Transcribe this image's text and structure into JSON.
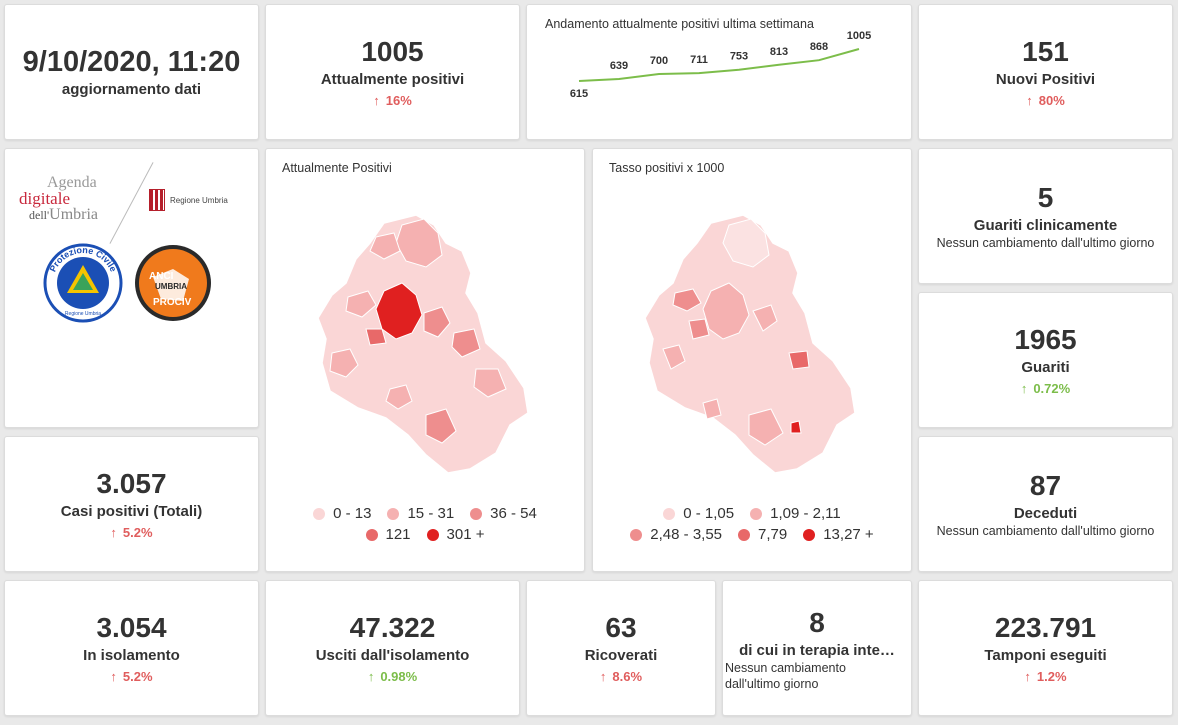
{
  "update": {
    "datetime": "9/10/2020, 11:20",
    "label": "aggiornamento dati"
  },
  "attualmente_positivi": {
    "value": "1005",
    "label": "Attualmente positivi",
    "delta": "16%"
  },
  "trend": {
    "title": "Andamento attualmente positivi ultima settimana",
    "values": [
      615,
      639,
      700,
      711,
      753,
      813,
      868,
      1005
    ],
    "color": "#7cbd4a"
  },
  "nuovi_positivi": {
    "value": "151",
    "label": "Nuovi Positivi",
    "delta": "80%"
  },
  "logos": {
    "agenda_line1": "Agenda",
    "agenda_line2": "digitale",
    "agenda_line3a": "dell'",
    "agenda_line3b": "Umbria",
    "regione": "Regione Umbria",
    "protezione_civile": "Protezione Civile",
    "protezione_civile_sub": "Regione Umbria",
    "anci_line1": "ANCI",
    "anci_line2": "UMBRIA",
    "anci_line3": "PROCIV"
  },
  "map_positivi": {
    "title": "Attualmente Positivi",
    "legend": [
      {
        "label": "0 - 13",
        "color": "#fad6d6"
      },
      {
        "label": "15 - 31",
        "color": "#f5b1b1"
      },
      {
        "label": "36 - 54",
        "color": "#ee8e8e"
      },
      {
        "label": "121",
        "color": "#e86969"
      },
      {
        "label": "301 +",
        "color": "#e02020"
      }
    ]
  },
  "map_tasso": {
    "title": "Tasso positivi x 1000",
    "legend": [
      {
        "label": "0 - 1,05",
        "color": "#fad6d6"
      },
      {
        "label": "1,09 - 2,11",
        "color": "#f5b1b1"
      },
      {
        "label": "2,48 - 3,55",
        "color": "#ee8e8e"
      },
      {
        "label": "7,79",
        "color": "#e86969"
      },
      {
        "label": "13,27 +",
        "color": "#e02020"
      }
    ]
  },
  "guariti_clinicamente": {
    "value": "5",
    "label": "Guariti clinicamente",
    "note": "Nessun cambiamento dall'ultimo giorno"
  },
  "guariti": {
    "value": "1965",
    "label": "Guariti",
    "delta": "0.72%"
  },
  "casi_totali": {
    "value": "3.057",
    "label": "Casi positivi (Totali)",
    "delta": "5.2%"
  },
  "deceduti": {
    "value": "87",
    "label": "Deceduti",
    "note": "Nessun cambiamento dall'ultimo giorno"
  },
  "isolamento": {
    "value": "3.054",
    "label": "In isolamento",
    "delta": "5.2%"
  },
  "usciti": {
    "value": "47.322",
    "label": "Usciti dall'isolamento",
    "delta": "0.98%"
  },
  "ricoverati": {
    "value": "63",
    "label": "Ricoverati",
    "delta": "8.6%"
  },
  "terapia_intensiva": {
    "value": "8",
    "label": "di cui in terapia inte…",
    "note": "Nessun cambiamento dall'ultimo giorno"
  },
  "tamponi": {
    "value": "223.791",
    "label": "Tamponi eseguiti",
    "delta": "1.2%"
  }
}
